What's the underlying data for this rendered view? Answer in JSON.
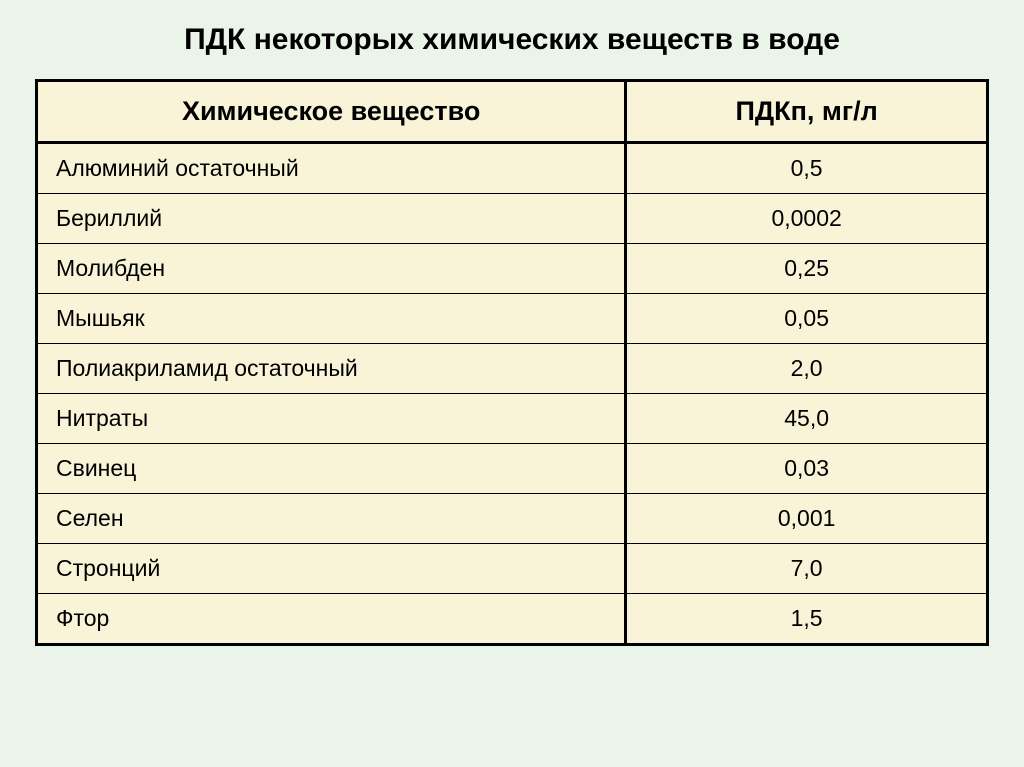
{
  "title": "ПДК некоторых химических веществ в воде",
  "table": {
    "type": "table",
    "background_color": "#f9f3d8",
    "page_background": "#eaf4e8",
    "border_color": "#000000",
    "columns": [
      {
        "label": "Химическое вещество",
        "width": "62%",
        "align_header": "center",
        "align_cells": "left"
      },
      {
        "label": "ПДКп, мг/л",
        "width": "38%",
        "align_header": "center",
        "align_cells": "center"
      }
    ],
    "rows": [
      {
        "substance": "Алюминий остаточный",
        "value": "0,5"
      },
      {
        "substance": "Бериллий",
        "value": "0,0002"
      },
      {
        "substance": "Молибден",
        "value": "0,25"
      },
      {
        "substance": "Мышьяк",
        "value": "0,05"
      },
      {
        "substance": "Полиакриламид остаточный",
        "value": "2,0"
      },
      {
        "substance": "Нитраты",
        "value": "45,0"
      },
      {
        "substance": "Свинец",
        "value": "0,03"
      },
      {
        "substance": "Селен",
        "value": "0,001"
      },
      {
        "substance": "Стронций",
        "value": "7,0"
      },
      {
        "substance": "Фтор",
        "value": "1,5"
      }
    ],
    "title_fontsize": 30,
    "header_fontsize": 27,
    "cell_fontsize": 23
  }
}
